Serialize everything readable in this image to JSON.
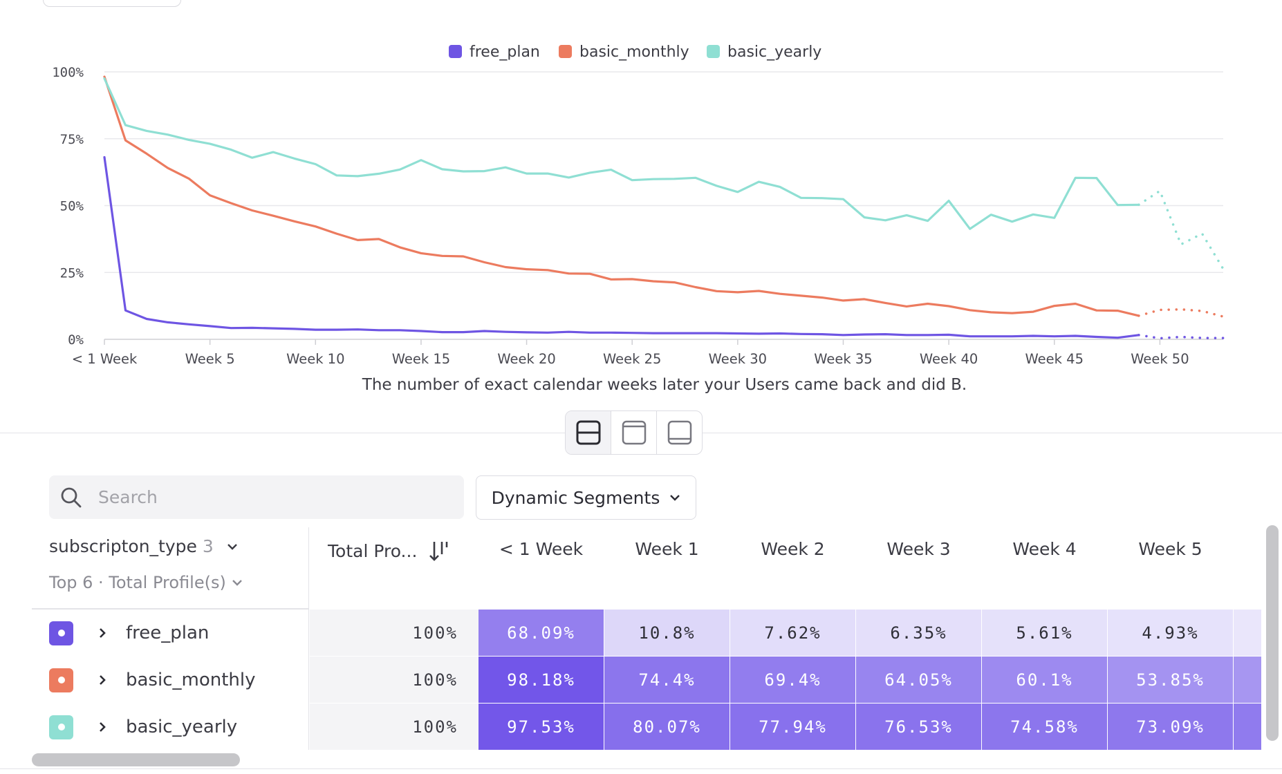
{
  "chart_data": {
    "type": "line",
    "xlabel": "The number of exact calendar weeks later your Users came back and did B.",
    "x_ticks": [
      "< 1 Week",
      "Week 5",
      "Week 10",
      "Week 15",
      "Week 20",
      "Week 25",
      "Week 30",
      "Week 35",
      "Week 40",
      "Week 45",
      "Week 50"
    ],
    "y_ticks": [
      "100%",
      "75%",
      "50%",
      "25%",
      "0%"
    ],
    "ylim": [
      0,
      100
    ],
    "x_range": [
      0,
      53
    ],
    "solid_through_week": 49,
    "grid": true,
    "legend_position": "top-center",
    "series": [
      {
        "name": "free_plan",
        "color": "#6e55e3",
        "values": [
          68.09,
          10.8,
          7.62,
          6.35,
          5.61,
          4.93,
          4.2,
          4.3,
          4.1,
          3.9,
          3.6,
          3.6,
          3.7,
          3.4,
          3.4,
          3.1,
          2.7,
          2.7,
          3.1,
          2.8,
          2.6,
          2.5,
          2.8,
          2.5,
          2.5,
          2.4,
          2.3,
          2.3,
          2.3,
          2.3,
          2.2,
          2.1,
          2.2,
          2.0,
          1.9,
          1.6,
          1.8,
          1.9,
          1.6,
          1.6,
          1.7,
          1.1,
          1.1,
          1.1,
          1.3,
          1.1,
          1.3,
          0.9,
          0.6,
          1.6,
          0.4,
          0.9,
          0.5,
          0.5
        ]
      },
      {
        "name": "basic_monthly",
        "color": "#ec7b5f",
        "values": [
          98.18,
          74.4,
          69.4,
          64.05,
          60.1,
          53.85,
          50.9,
          48.2,
          46.2,
          44.1,
          42.2,
          39.5,
          37.1,
          37.5,
          34.4,
          32.2,
          31.2,
          31.0,
          28.8,
          27.0,
          26.2,
          25.9,
          24.6,
          24.5,
          22.4,
          22.5,
          21.7,
          21.3,
          19.5,
          18.0,
          17.6,
          18.1,
          17.0,
          16.3,
          15.6,
          14.5,
          15.0,
          13.6,
          12.3,
          13.3,
          12.4,
          10.9,
          10.1,
          9.8,
          10.3,
          12.5,
          13.3,
          10.8,
          10.7,
          8.8,
          11.0,
          11.2,
          10.6,
          8.5
        ]
      },
      {
        "name": "basic_yearly",
        "color": "#8fdfd3",
        "values": [
          97.53,
          80.07,
          77.94,
          76.53,
          74.58,
          73.09,
          70.9,
          67.9,
          70.0,
          67.6,
          65.5,
          61.3,
          61.0,
          61.9,
          63.5,
          67.0,
          63.6,
          62.8,
          62.9,
          64.3,
          62.0,
          62.0,
          60.5,
          62.3,
          63.4,
          59.5,
          59.9,
          60.0,
          60.4,
          57.4,
          55.1,
          58.9,
          57.0,
          52.9,
          52.8,
          52.4,
          45.6,
          44.5,
          46.4,
          44.3,
          51.8,
          41.3,
          46.6,
          44.0,
          46.7,
          45.4,
          60.4,
          60.3,
          50.2,
          50.3,
          55.5,
          35.5,
          39.5,
          26.3
        ]
      }
    ]
  },
  "toolbar": {
    "view_buttons": [
      "split-view-icon",
      "top-panel-icon",
      "bottom-panel-icon"
    ],
    "search_placeholder": "Search",
    "segments_label": "Dynamic Segments"
  },
  "table": {
    "group_label": "subscripton_type",
    "group_count": "3",
    "top_label": "Top 6 · Total Profile(s)",
    "total_header": "Total Pro...",
    "columns": [
      "< 1 Week",
      "Week 1",
      "Week 2",
      "Week 3",
      "Week 4",
      "Week 5"
    ],
    "rows": [
      {
        "name": "free_plan",
        "color": "#6e55e3",
        "total": "100%",
        "cells": [
          "68.09%",
          "10.8%",
          "7.62%",
          "6.35%",
          "5.61%",
          "4.93%"
        ]
      },
      {
        "name": "basic_monthly",
        "color": "#ec7b5f",
        "total": "100%",
        "cells": [
          "98.18%",
          "74.4%",
          "69.4%",
          "64.05%",
          "60.1%",
          "53.85%"
        ]
      },
      {
        "name": "basic_yearly",
        "color": "#8fdfd3",
        "total": "100%",
        "cells": [
          "97.53%",
          "80.07%",
          "77.94%",
          "76.53%",
          "74.58%",
          "73.09%"
        ]
      }
    ]
  }
}
